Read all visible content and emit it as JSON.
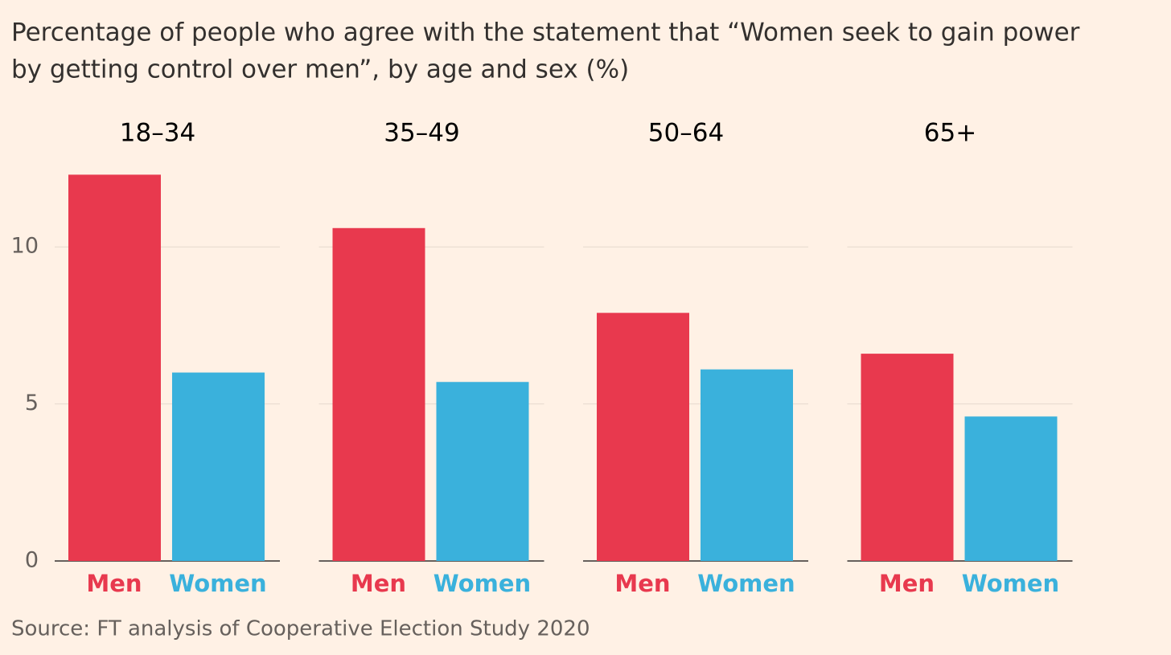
{
  "title_lines": [
    "Percentage of people who agree with the statement that “Women seek to gain power",
    "by getting control over men”, by age and sex (%)"
  ],
  "source": "Source: FT analysis of Cooperative Election Study 2020",
  "chart_data": [
    {
      "type": "bar",
      "title": "18–34",
      "categories": [
        "Men",
        "Women"
      ],
      "values": [
        12.3,
        6.0
      ],
      "colors": [
        "#e8394e",
        "#3ab1dc"
      ],
      "ylim": [
        0,
        13
      ],
      "yticks": [
        0,
        5,
        10
      ],
      "grid": true
    },
    {
      "type": "bar",
      "title": "35–49",
      "categories": [
        "Men",
        "Women"
      ],
      "values": [
        10.6,
        5.7
      ],
      "colors": [
        "#e8394e",
        "#3ab1dc"
      ],
      "ylim": [
        0,
        13
      ],
      "yticks": [
        0,
        5,
        10
      ],
      "grid": true
    },
    {
      "type": "bar",
      "title": "50–64",
      "categories": [
        "Men",
        "Women"
      ],
      "values": [
        7.9,
        6.1
      ],
      "colors": [
        "#e8394e",
        "#3ab1dc"
      ],
      "ylim": [
        0,
        13
      ],
      "yticks": [
        0,
        5,
        10
      ],
      "grid": true
    },
    {
      "type": "bar",
      "title": "65+",
      "categories": [
        "Men",
        "Women"
      ],
      "values": [
        6.6,
        4.6
      ],
      "colors": [
        "#e8394e",
        "#3ab1dc"
      ],
      "ylim": [
        0,
        13
      ],
      "yticks": [
        0,
        5,
        10
      ],
      "grid": true
    }
  ]
}
